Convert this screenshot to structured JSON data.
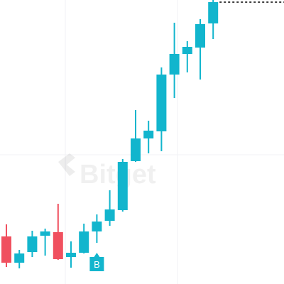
{
  "chart_data": {
    "type": "candlestick",
    "watermark": "Bitget",
    "open": [
      67,
      30,
      45,
      68,
      73,
      38,
      44,
      74,
      89,
      104,
      173,
      205,
      215,
      295,
      324,
      333,
      367
    ],
    "close": [
      30,
      43,
      67,
      74,
      35,
      44,
      74,
      88,
      105,
      172,
      205,
      216,
      295,
      324,
      334,
      366,
      397
    ],
    "high": [
      84,
      48,
      75,
      78,
      113,
      60,
      85,
      98,
      132,
      176,
      245,
      230,
      305,
      368,
      342,
      373,
      400
    ],
    "low": [
      24,
      22,
      38,
      40,
      34,
      23,
      43,
      58,
      82,
      102,
      172,
      184,
      187,
      262,
      298,
      288,
      345
    ],
    "up_color": "#12b5cd",
    "down_color": "#f0505f",
    "ylim": [
      0,
      400
    ],
    "markers": [
      {
        "index": 7,
        "label": "B"
      }
    ]
  }
}
